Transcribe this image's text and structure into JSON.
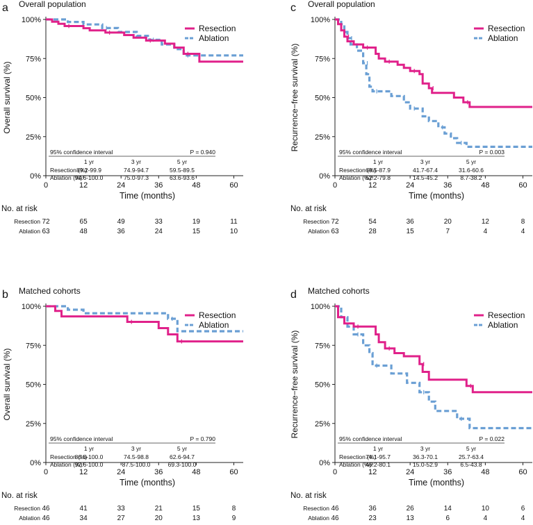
{
  "figure": {
    "x_ticks": [
      0,
      12,
      24,
      36,
      48,
      60
    ],
    "y_ticks": [
      "0%",
      "25%",
      "50%",
      "75%",
      "100%"
    ],
    "xlabel": "Time (months)",
    "risk_title": "No. at risk",
    "ci_title": "95% confidence interval",
    "year_headers": [
      "1 yr",
      "3 yr",
      "5 yr"
    ],
    "row_labels": [
      "Resection (%)",
      "Ablation (%)"
    ],
    "risk_row_labels": [
      "Resection",
      "Ablation"
    ],
    "colors": {
      "resection": "#e0218a",
      "ablation": "#6a9fd4"
    }
  },
  "chart_data": [
    {
      "panel": "a",
      "type": "line",
      "title": "Overall population",
      "ylabel": "Overall survival (%)",
      "xlabel": "Time (months)",
      "xlim": [
        0,
        63
      ],
      "ylim": [
        0,
        100
      ],
      "legend_position": "top-right",
      "series": [
        {
          "name": "Resection",
          "steps": [
            [
              0,
              100
            ],
            [
              2,
              98.6
            ],
            [
              4,
              97.2
            ],
            [
              6,
              95.8
            ],
            [
              12,
              94.4
            ],
            [
              14,
              93.0
            ],
            [
              19,
              91.6
            ],
            [
              25,
              90.0
            ],
            [
              28,
              88.3
            ],
            [
              32,
              86.5
            ],
            [
              38,
              84.5
            ],
            [
              41,
              82.0
            ],
            [
              44,
              78.0
            ],
            [
              49,
              73.0
            ],
            [
              63,
              73.0
            ]
          ]
        },
        {
          "name": "Ablation",
          "steps": [
            [
              0,
              100
            ],
            [
              7,
              98.4
            ],
            [
              12,
              96.8
            ],
            [
              18,
              94.5
            ],
            [
              23,
              92.0
            ],
            [
              29,
              89.5
            ],
            [
              33,
              87.0
            ],
            [
              37,
              84.0
            ],
            [
              41,
              81.0
            ],
            [
              44,
              77.0
            ],
            [
              63,
              77.0
            ]
          ]
        }
      ],
      "p_value": "P = 0.940",
      "ci_table": [
        [
          "89.2-99.9",
          "74.9-94.7",
          "59.5-89.5"
        ],
        [
          "94.6-100.0",
          "75.0-97.3",
          "63.6-93.6"
        ]
      ],
      "at_risk": [
        [
          "72",
          "65",
          "49",
          "33",
          "19",
          "11"
        ],
        [
          "63",
          "48",
          "36",
          "24",
          "15",
          "10"
        ]
      ]
    },
    {
      "panel": "b",
      "type": "line",
      "title": "Matched cohorts",
      "ylabel": "Overall survival (%)",
      "xlabel": "Time (months)",
      "xlim": [
        0,
        63
      ],
      "ylim": [
        0,
        100
      ],
      "legend_position": "top-right",
      "series": [
        {
          "name": "Resection",
          "steps": [
            [
              0,
              100
            ],
            [
              3,
              97
            ],
            [
              5,
              93.5
            ],
            [
              26,
              90
            ],
            [
              36,
              86
            ],
            [
              39,
              82
            ],
            [
              42,
              77.5
            ],
            [
              63,
              77.5
            ]
          ]
        },
        {
          "name": "Ablation",
          "steps": [
            [
              0,
              100
            ],
            [
              7,
              97.8
            ],
            [
              12,
              95.5
            ],
            [
              39,
              92
            ],
            [
              42,
              84
            ],
            [
              63,
              84
            ]
          ]
        }
      ],
      "p_value": "P = 0.790",
      "ci_table": [
        [
          "86.6-100.0",
          "74.5-98.8",
          "62.6-94.7"
        ],
        [
          "92.6-100.0",
          "87.5-100.0",
          "69.3-100.0"
        ]
      ],
      "at_risk": [
        [
          "46",
          "41",
          "33",
          "21",
          "15",
          "8"
        ],
        [
          "46",
          "34",
          "27",
          "20",
          "13",
          "9"
        ]
      ]
    },
    {
      "panel": "c",
      "type": "line",
      "title": "Overall population",
      "ylabel": "Recurrence−free survival (%)",
      "xlabel": "Time (months)",
      "xlim": [
        0,
        63
      ],
      "ylim": [
        0,
        100
      ],
      "legend_position": "top-right",
      "series": [
        {
          "name": "Resection",
          "steps": [
            [
              0,
              100
            ],
            [
              1,
              97
            ],
            [
              2,
              93
            ],
            [
              3,
              89
            ],
            [
              4,
              86
            ],
            [
              6,
              84
            ],
            [
              9,
              82
            ],
            [
              13,
              78
            ],
            [
              14,
              75
            ],
            [
              16,
              73
            ],
            [
              20,
              71
            ],
            [
              22,
              69
            ],
            [
              24,
              67
            ],
            [
              27,
              65
            ],
            [
              28,
              59
            ],
            [
              30,
              56
            ],
            [
              31,
              53
            ],
            [
              38,
              50
            ],
            [
              41,
              47
            ],
            [
              43,
              44
            ],
            [
              63,
              44
            ]
          ]
        },
        {
          "name": "Ablation",
          "steps": [
            [
              0,
              100
            ],
            [
              2,
              97
            ],
            [
              3,
              92
            ],
            [
              4,
              88
            ],
            [
              5,
              84
            ],
            [
              7,
              80
            ],
            [
              9,
              72
            ],
            [
              10,
              65
            ],
            [
              11,
              57
            ],
            [
              12,
              54
            ],
            [
              18,
              51
            ],
            [
              22,
              47
            ],
            [
              24,
              43
            ],
            [
              28,
              38
            ],
            [
              30,
              35
            ],
            [
              33,
              31
            ],
            [
              35,
              27
            ],
            [
              37,
              24
            ],
            [
              39,
              21
            ],
            [
              42,
              18.5
            ],
            [
              63,
              18.5
            ]
          ]
        }
      ],
      "p_value": "P = 0.003",
      "ci_table": [
        [
          "68.5-87.9",
          "41.7-67.4",
          "31.6-60.6"
        ],
        [
          "52.2-79.8",
          "14.5-45.2",
          "8.7-38.2"
        ]
      ],
      "at_risk": [
        [
          "72",
          "54",
          "36",
          "20",
          "12",
          "8"
        ],
        [
          "63",
          "28",
          "15",
          "7",
          "4",
          "4"
        ]
      ]
    },
    {
      "panel": "d",
      "type": "line",
      "title": "Matched cohorts",
      "ylabel": "Recurrence−free survival (%)",
      "xlabel": "Time (months)",
      "xlim": [
        0,
        63
      ],
      "ylim": [
        0,
        100
      ],
      "legend_position": "top-right",
      "series": [
        {
          "name": "Resection",
          "steps": [
            [
              0,
              100
            ],
            [
              1,
              93
            ],
            [
              3,
              89
            ],
            [
              6,
              87
            ],
            [
              13,
              82
            ],
            [
              14,
              77
            ],
            [
              16,
              73
            ],
            [
              19,
              70
            ],
            [
              22,
              68
            ],
            [
              27,
              63
            ],
            [
              28,
              58
            ],
            [
              30,
              53
            ],
            [
              42,
              49
            ],
            [
              44,
              45
            ],
            [
              63,
              45
            ]
          ]
        },
        {
          "name": "Ablation",
          "steps": [
            [
              0,
              100
            ],
            [
              2,
              93
            ],
            [
              4,
              87
            ],
            [
              6,
              82
            ],
            [
              9,
              75
            ],
            [
              11,
              70
            ],
            [
              12,
              62
            ],
            [
              18,
              57
            ],
            [
              23,
              51
            ],
            [
              27,
              45
            ],
            [
              30,
              39
            ],
            [
              32,
              33
            ],
            [
              39,
              28
            ],
            [
              43,
              22
            ],
            [
              63,
              22
            ]
          ]
        }
      ],
      "p_value": "P = 0.022",
      "ci_table": [
        [
          "74.1-95.7",
          "36.3-70.1",
          "25.7-63.4"
        ],
        [
          "46.2-80.1",
          "15.0-52.9",
          "6.5-43.8"
        ]
      ],
      "at_risk": [
        [
          "46",
          "36",
          "26",
          "14",
          "10",
          "6"
        ],
        [
          "46",
          "23",
          "13",
          "6",
          "4",
          "4"
        ]
      ]
    }
  ]
}
